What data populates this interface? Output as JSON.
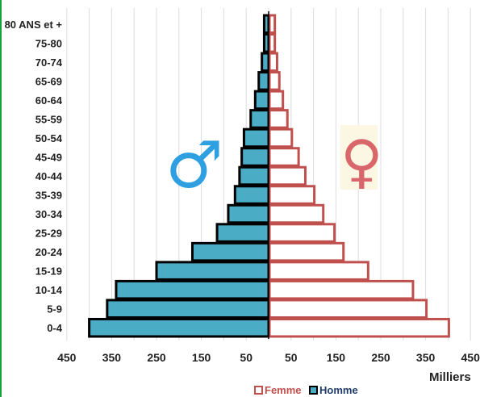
{
  "chart_data": {
    "type": "bar",
    "orientation": "horizontal",
    "categories": [
      "0-4",
      "5-9",
      "10-14",
      "15-19",
      "20-24",
      "25-29",
      "30-34",
      "35-39",
      "40-44",
      "45-49",
      "50-54",
      "55-59",
      "60-64",
      "65-69",
      "70-74",
      "75-80",
      "80 ANS et +"
    ],
    "series": [
      {
        "name": "Femme",
        "color": "#c0504d",
        "values": [
          400,
          350,
          320,
          220,
          165,
          145,
          120,
          100,
          80,
          65,
          50,
          40,
          30,
          22,
          17,
          12,
          12
        ]
      },
      {
        "name": "Homme",
        "color": "#4bacc6",
        "values": [
          400,
          360,
          340,
          250,
          170,
          115,
          90,
          75,
          65,
          60,
          55,
          40,
          30,
          22,
          15,
          10,
          10
        ]
      }
    ],
    "xtick_labels": [
      "450",
      "350",
      "250",
      "150",
      "50",
      "50",
      "150",
      "250",
      "350",
      "450"
    ],
    "xlim": [
      -450,
      450
    ],
    "unit_label": "Milliers",
    "legend_position": "bottom",
    "grid": true
  },
  "symbols": {
    "male": "♂",
    "female": "♀"
  }
}
